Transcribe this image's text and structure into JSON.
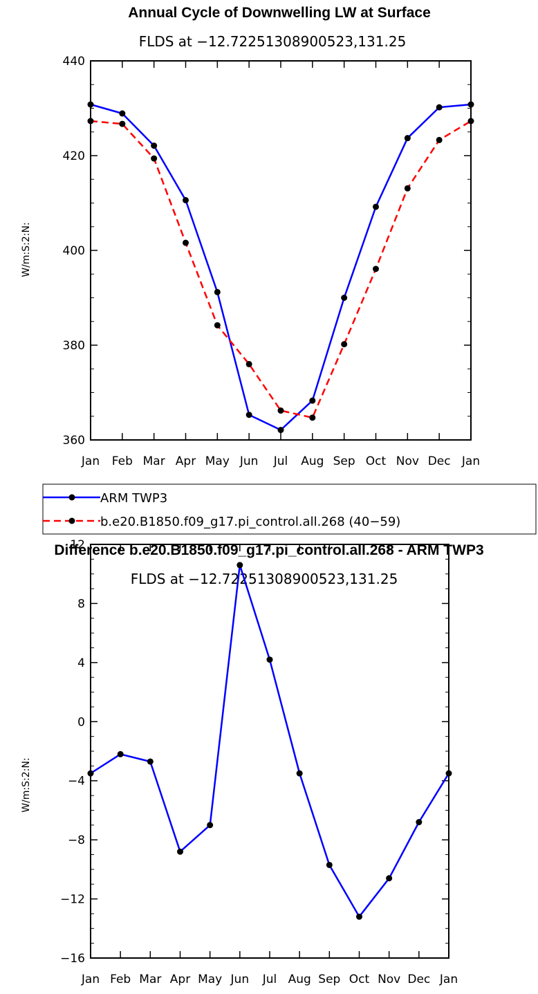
{
  "chart_data": [
    {
      "type": "line",
      "title": "Annual Cycle of Downwelling LW at Surface",
      "subtitle": "FLDS at −12.72251308900523,131.25",
      "xlabel": "",
      "ylabel": "W/m:S:2:N:",
      "categories": [
        "Jan",
        "Feb",
        "Mar",
        "Apr",
        "May",
        "Jun",
        "Jul",
        "Aug",
        "Sep",
        "Oct",
        "Nov",
        "Dec",
        "Jan"
      ],
      "ylim": [
        360,
        440
      ],
      "yticks": [
        "360",
        "380",
        "400",
        "420",
        "440"
      ],
      "grid": false,
      "legend_position": "below",
      "series": [
        {
          "name": "ARM TWP3",
          "color": "#0000ff",
          "dash": false,
          "values": [
            430.8,
            428.9,
            422.1,
            410.6,
            391.2,
            365.3,
            362.1,
            368.3,
            390.0,
            409.2,
            423.7,
            430.2,
            430.8
          ]
        },
        {
          "name": "b.e20.B1850.f09_g17.pi_control.all.268 (40−59)",
          "color": "#ff0000",
          "dash": true,
          "values": [
            427.3,
            426.7,
            419.4,
            401.6,
            384.2,
            376.0,
            366.2,
            364.7,
            380.2,
            396.1,
            413.1,
            423.3,
            427.3
          ]
        }
      ]
    },
    {
      "type": "line",
      "title": "Difference b.e20.B1850.f09_g17.pi_control.all.268 - ARM TWP3",
      "subtitle": "FLDS at −12.72251308900523,131.25",
      "xlabel": "",
      "ylabel": "W/m:S:2:N:",
      "categories": [
        "Jan",
        "Feb",
        "Mar",
        "Apr",
        "May",
        "Jun",
        "Jul",
        "Aug",
        "Sep",
        "Oct",
        "Nov",
        "Dec",
        "Jan"
      ],
      "ylim": [
        -16,
        12
      ],
      "yticks": [
        "−16",
        "−12",
        "−8",
        "−4",
        "0",
        "4",
        "8",
        "12"
      ],
      "grid": false,
      "series": [
        {
          "color": "#0000ff",
          "dash": false,
          "values": [
            -3.5,
            -2.2,
            -2.7,
            -8.8,
            -7.0,
            10.6,
            4.2,
            -3.5,
            -9.7,
            -13.2,
            -10.6,
            -6.8,
            -3.5
          ]
        }
      ]
    }
  ]
}
